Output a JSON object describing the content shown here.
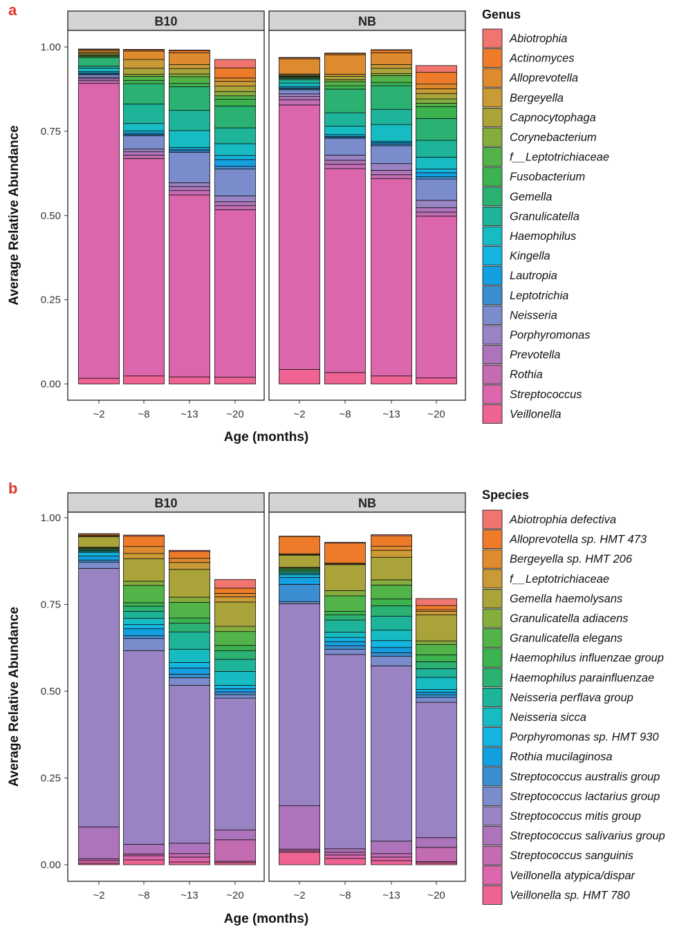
{
  "figure": {
    "panels": [
      {
        "letter": "a",
        "ylabel": "Average Relative Abundance",
        "xlabel": "Age (months)",
        "legend_title": "Genus",
        "y_ticks": [
          "0.00",
          "0.25",
          "0.50",
          "0.75",
          "1.00"
        ],
        "facets": [
          {
            "label": "B10",
            "categories": [
              "~2",
              "~8",
              "~13",
              "~20"
            ]
          },
          {
            "label": "NB",
            "categories": [
              "~2",
              "~8",
              "~13",
              "~20"
            ]
          }
        ],
        "legend": [
          {
            "label": "Abiotrophia",
            "color": "#F0756E"
          },
          {
            "label": "Actinomyces",
            "color": "#EE7B2A"
          },
          {
            "label": "Alloprevotella",
            "color": "#DE8A2E"
          },
          {
            "label": "Bergeyella",
            "color": "#C99A35"
          },
          {
            "label": "Capnocytophaga",
            "color": "#A9A33A"
          },
          {
            "label": "Corynebacterium",
            "color": "#84AD3E"
          },
          {
            "label": "f__Leptotrichiaceae",
            "color": "#52B448"
          },
          {
            "label": "Fusobacterium",
            "color": "#3CB34F"
          },
          {
            "label": "Gemella",
            "color": "#2BB172"
          },
          {
            "label": "Granulicatella",
            "color": "#1EB49A"
          },
          {
            "label": "Haemophilus",
            "color": "#16BCC2"
          },
          {
            "label": "Kingella",
            "color": "#14B5E0"
          },
          {
            "label": "Lautropia",
            "color": "#149FE0"
          },
          {
            "label": "Leptotrichia",
            "color": "#3B8FD0"
          },
          {
            "label": "Neisseria",
            "color": "#7A8CCB"
          },
          {
            "label": "Porphyromonas",
            "color": "#9A83C3"
          },
          {
            "label": "Prevotella",
            "color": "#AE74BB"
          },
          {
            "label": "Rothia",
            "color": "#C36CB1"
          },
          {
            "label": "Streptococcus",
            "color": "#DB66AC"
          },
          {
            "label": "Veillonella",
            "color": "#EE6393"
          }
        ]
      },
      {
        "letter": "b",
        "ylabel": "Average Relative Abundance",
        "xlabel": "Age (months)",
        "legend_title": "Species",
        "y_ticks": [
          "0.00",
          "0.25",
          "0.50",
          "0.75",
          "1.00"
        ],
        "facets": [
          {
            "label": "B10",
            "categories": [
              "~2",
              "~8",
              "~13",
              "~20"
            ]
          },
          {
            "label": "NB",
            "categories": [
              "~2",
              "~8",
              "~13",
              "~20"
            ]
          }
        ],
        "legend": [
          {
            "label": "Abiotrophia defectiva",
            "color": "#F0756E"
          },
          {
            "label": "Alloprevotella sp. HMT 473",
            "color": "#EE7B2A"
          },
          {
            "label": "Bergeyella sp. HMT 206",
            "color": "#DE8A2E"
          },
          {
            "label": "f__Leptotrichiaceae",
            "color": "#C99A35"
          },
          {
            "label": "Gemella haemolysans",
            "color": "#A9A33A"
          },
          {
            "label": "Granulicatella adiacens",
            "color": "#84AD3E"
          },
          {
            "label": "Granulicatella elegans",
            "color": "#52B448"
          },
          {
            "label": "Haemophilus influenzae group",
            "color": "#3CB34F"
          },
          {
            "label": "Haemophilus parainfluenzae",
            "color": "#2BB172"
          },
          {
            "label": "Neisseria perflava group",
            "color": "#1EB49A"
          },
          {
            "label": "Neisseria sicca",
            "color": "#16BCC2"
          },
          {
            "label": "Porphyromonas sp. HMT 930",
            "color": "#14B5E0"
          },
          {
            "label": "Rothia mucilaginosa",
            "color": "#149FE0"
          },
          {
            "label": "Streptococcus australis group",
            "color": "#3B8FD0"
          },
          {
            "label": "Streptococcus lactarius group",
            "color": "#7A8CCB"
          },
          {
            "label": "Streptococcus mitis group",
            "color": "#9A83C3"
          },
          {
            "label": "Streptococcus salivarius group",
            "color": "#AE74BB"
          },
          {
            "label": "Streptococcus sanguinis",
            "color": "#C36CB1"
          },
          {
            "label": "Veillonella atypica/dispar",
            "color": "#DB66AC"
          },
          {
            "label": "Veillonella sp. HMT 780",
            "color": "#EE6393"
          }
        ]
      }
    ]
  },
  "chart_data": [
    {
      "type": "bar",
      "stacked": true,
      "title": "",
      "xlabel": "Age (months)",
      "ylabel": "Average Relative Abundance",
      "ylim": [
        0,
        1.05
      ],
      "facets": [
        "B10",
        "NB"
      ],
      "categories": [
        "~2",
        "~8",
        "~13",
        "~20"
      ],
      "legend_placement": "right",
      "grid": false,
      "series": [
        {
          "name": "Veillonella",
          "B10": [
            0.017,
            0.024,
            0.021,
            0.02
          ],
          "NB": [
            0.043,
            0.034,
            0.024,
            0.018
          ]
        },
        {
          "name": "Streptococcus",
          "B10": [
            0.875,
            0.645,
            0.54,
            0.497
          ],
          "NB": [
            0.785,
            0.605,
            0.585,
            0.48
          ]
        },
        {
          "name": "Rothia",
          "B10": [
            0.008,
            0.01,
            0.013,
            0.012
          ],
          "NB": [
            0.015,
            0.013,
            0.012,
            0.012
          ]
        },
        {
          "name": "Prevotella",
          "B10": [
            0.006,
            0.01,
            0.012,
            0.012
          ],
          "NB": [
            0.01,
            0.012,
            0.013,
            0.013
          ]
        },
        {
          "name": "Porphyromonas",
          "B10": [
            0.004,
            0.008,
            0.011,
            0.017
          ],
          "NB": [
            0.008,
            0.015,
            0.02,
            0.022
          ]
        },
        {
          "name": "Neisseria",
          "B10": [
            0.008,
            0.04,
            0.09,
            0.08
          ],
          "NB": [
            0.012,
            0.05,
            0.053,
            0.063
          ]
        },
        {
          "name": "Leptotrichia",
          "B10": [
            0.002,
            0.003,
            0.005,
            0.008
          ],
          "NB": [
            0.003,
            0.003,
            0.005,
            0.007
          ]
        },
        {
          "name": "Lautropia",
          "B10": [
            0.003,
            0.004,
            0.004,
            0.02
          ],
          "NB": [
            0.003,
            0.003,
            0.004,
            0.012
          ]
        },
        {
          "name": "Kingella",
          "B10": [
            0.004,
            0.007,
            0.006,
            0.012
          ],
          "NB": [
            0.004,
            0.005,
            0.004,
            0.011
          ]
        },
        {
          "name": "Haemophilus",
          "B10": [
            0.01,
            0.022,
            0.05,
            0.035
          ],
          "NB": [
            0.01,
            0.025,
            0.05,
            0.035
          ]
        },
        {
          "name": "Granulicatella",
          "B10": [
            0.006,
            0.058,
            0.06,
            0.047
          ],
          "NB": [
            0.01,
            0.04,
            0.045,
            0.05
          ]
        },
        {
          "name": "Gemella",
          "B10": [
            0.025,
            0.06,
            0.07,
            0.065
          ],
          "NB": [
            0.004,
            0.07,
            0.07,
            0.065
          ]
        },
        {
          "name": "Fusobacterium",
          "B10": [
            0.004,
            0.01,
            0.01,
            0.02
          ],
          "NB": [
            0.003,
            0.01,
            0.01,
            0.035
          ]
        },
        {
          "name": "f__Leptotrichiaceae",
          "B10": [
            0.002,
            0.012,
            0.02,
            0.01
          ],
          "NB": [
            0.002,
            0.012,
            0.02,
            0.01
          ]
        },
        {
          "name": "Corynebacterium",
          "B10": [
            0.003,
            0.006,
            0.008,
            0.013
          ],
          "NB": [
            0.002,
            0.006,
            0.006,
            0.013
          ]
        },
        {
          "name": "Capnocytophaga",
          "B10": [
            0.004,
            0.018,
            0.016,
            0.016
          ],
          "NB": [
            0.003,
            0.01,
            0.016,
            0.016
          ]
        },
        {
          "name": "Bergeyella",
          "B10": [
            0.004,
            0.026,
            0.012,
            0.014
          ],
          "NB": [
            0.003,
            0.006,
            0.011,
            0.014
          ]
        },
        {
          "name": "Alloprevotella",
          "B10": [
            0.005,
            0.025,
            0.035,
            0.01
          ],
          "NB": [
            0.045,
            0.058,
            0.035,
            0.014
          ]
        },
        {
          "name": "Actinomyces",
          "B10": [
            0.003,
            0.004,
            0.007,
            0.03
          ],
          "NB": [
            0.003,
            0.004,
            0.008,
            0.035
          ]
        },
        {
          "name": "Abiotrophia",
          "B10": [
            0.001,
            0.001,
            0.001,
            0.025
          ],
          "NB": [
            0.001,
            0.001,
            0.001,
            0.02
          ]
        }
      ]
    },
    {
      "type": "bar",
      "stacked": true,
      "title": "",
      "xlabel": "Age (months)",
      "ylabel": "Average Relative Abundance",
      "ylim": [
        0,
        1.05
      ],
      "facets": [
        "B10",
        "NB"
      ],
      "categories": [
        "~2",
        "~8",
        "~13",
        "~20"
      ],
      "legend_placement": "right",
      "grid": false,
      "series": [
        {
          "name": "Veillonella sp. HMT 780",
          "B10": [
            0.004,
            0.014,
            0.008,
            0.006
          ],
          "NB": [
            0.036,
            0.018,
            0.012,
            0.005
          ]
        },
        {
          "name": "Veillonella atypica/dispar",
          "B10": [
            0.008,
            0.012,
            0.014,
            0.004
          ],
          "NB": [
            0.004,
            0.01,
            0.01,
            0.004
          ]
        },
        {
          "name": "Streptococcus sanguinis",
          "B10": [
            0.005,
            0.005,
            0.01,
            0.062
          ],
          "NB": [
            0.005,
            0.008,
            0.01,
            0.041
          ]
        },
        {
          "name": "Streptococcus salivarius group",
          "B10": [
            0.092,
            0.028,
            0.03,
            0.028
          ],
          "NB": [
            0.125,
            0.01,
            0.036,
            0.028
          ]
        },
        {
          "name": "Streptococcus mitis group",
          "B10": [
            0.745,
            0.558,
            0.455,
            0.38
          ],
          "NB": [
            0.582,
            0.56,
            0.505,
            0.39
          ]
        },
        {
          "name": "Streptococcus lactarius group",
          "B10": [
            0.018,
            0.035,
            0.022,
            0.01
          ],
          "NB": [
            0.006,
            0.015,
            0.028,
            0.014
          ]
        },
        {
          "name": "Streptococcus australis group",
          "B10": [
            0.006,
            0.008,
            0.01,
            0.008
          ],
          "NB": [
            0.05,
            0.01,
            0.01,
            0.008
          ]
        },
        {
          "name": "Rothia mucilaginosa",
          "B10": [
            0.012,
            0.02,
            0.018,
            0.009
          ],
          "NB": [
            0.02,
            0.012,
            0.015,
            0.007
          ]
        },
        {
          "name": "Porphyromonas sp. HMT 930",
          "B10": [
            0.01,
            0.012,
            0.016,
            0.01
          ],
          "NB": [
            0.008,
            0.012,
            0.02,
            0.008
          ]
        },
        {
          "name": "Neisseria sicca",
          "B10": [
            0.003,
            0.018,
            0.038,
            0.04
          ],
          "NB": [
            0.004,
            0.015,
            0.03,
            0.035
          ]
        },
        {
          "name": "Neisseria perflava group",
          "B10": [
            0.003,
            0.02,
            0.05,
            0.035
          ],
          "NB": [
            0.004,
            0.035,
            0.04,
            0.025
          ]
        },
        {
          "name": "Haemophilus parainfluenzae",
          "B10": [
            0.002,
            0.015,
            0.025,
            0.025
          ],
          "NB": [
            0.004,
            0.015,
            0.03,
            0.02
          ]
        },
        {
          "name": "Haemophilus influenzae group",
          "B10": [
            0.003,
            0.01,
            0.015,
            0.015
          ],
          "NB": [
            0.004,
            0.01,
            0.02,
            0.02
          ]
        },
        {
          "name": "Granulicatella elegans",
          "B10": [
            0.002,
            0.05,
            0.045,
            0.04
          ],
          "NB": [
            0.003,
            0.045,
            0.04,
            0.03
          ]
        },
        {
          "name": "Granulicatella adiacens",
          "B10": [
            0.002,
            0.012,
            0.015,
            0.015
          ],
          "NB": [
            0.002,
            0.015,
            0.015,
            0.01
          ]
        },
        {
          "name": "Gemella haemolysans",
          "B10": [
            0.03,
            0.065,
            0.08,
            0.07
          ],
          "NB": [
            0.035,
            0.075,
            0.065,
            0.075
          ]
        },
        {
          "name": "f__Leptotrichiaceae",
          "B10": [
            0.002,
            0.015,
            0.02,
            0.015
          ],
          "NB": [
            0.002,
            0.002,
            0.02,
            0.01
          ]
        },
        {
          "name": "Bergeyella sp. HMT 206",
          "B10": [
            0.002,
            0.02,
            0.012,
            0.01
          ],
          "NB": [
            0.002,
            0.002,
            0.012,
            0.005
          ]
        },
        {
          "name": "Alloprevotella sp. HMT 473",
          "B10": [
            0.004,
            0.03,
            0.02,
            0.015
          ],
          "NB": [
            0.05,
            0.058,
            0.03,
            0.012
          ]
        },
        {
          "name": "Abiotrophia defectiva",
          "B10": [
            0.001,
            0.003,
            0.003,
            0.025
          ],
          "NB": [
            0.001,
            0.002,
            0.003,
            0.02
          ]
        }
      ]
    }
  ]
}
